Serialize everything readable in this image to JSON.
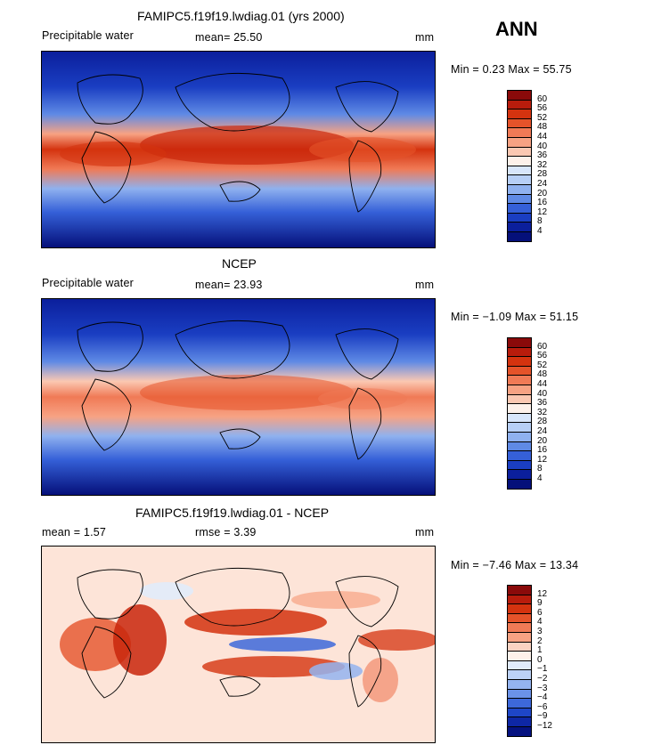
{
  "header": {
    "season": "ANN"
  },
  "panels": [
    {
      "title": "FAMIPC5.f19f19.lwdiag.01 (yrs 2000)",
      "left_label": "Precipitable water",
      "stat": "mean=  25.50",
      "unit": "mm",
      "minmax": "Min =   0.23 Max =  55.75",
      "kind": "sequential"
    },
    {
      "title": "NCEP",
      "left_label": "Precipitable water",
      "stat": "mean=  23.93",
      "unit": "mm",
      "minmax": "Min = −1.09 Max =  51.15",
      "kind": "sequential"
    },
    {
      "title": "FAMIPC5.f19f19.lwdiag.01 - NCEP",
      "left_label": "mean =   1.57",
      "stat": "rmse =   3.39",
      "unit": "mm",
      "minmax": "Min = −7.46 Max =  13.34",
      "kind": "difference"
    }
  ],
  "colorbars": {
    "sequential": {
      "labels": [
        "60",
        "56",
        "52",
        "48",
        "44",
        "40",
        "36",
        "32",
        "28",
        "24",
        "20",
        "16",
        "12",
        "8",
        "4"
      ],
      "colors": [
        "#8a0a0a",
        "#b81c0c",
        "#d4330f",
        "#e5532a",
        "#f07a56",
        "#f7a283",
        "#fbc8b2",
        "#fdf1ea",
        "#d8e6fb",
        "#b7cff6",
        "#8fb1ef",
        "#5f8ae5",
        "#3560d8",
        "#1a3ec2",
        "#0b1f9c",
        "#05107a"
      ]
    },
    "difference": {
      "labels": [
        "12",
        "9",
        "6",
        "4",
        "3",
        "2",
        "1",
        "0",
        "−1",
        "−2",
        "−3",
        "−4",
        "−6",
        "−9",
        "−12"
      ],
      "colors": [
        "#8a0a0a",
        "#b81c0c",
        "#d4330f",
        "#e5532a",
        "#f07a56",
        "#f7a283",
        "#fbd3c2",
        "#fdf1ea",
        "#e1ebfb",
        "#bcd2f7",
        "#94b4f0",
        "#6b92e8",
        "#3d68da",
        "#1e46c7",
        "#0e27a5",
        "#051280"
      ]
    }
  }
}
